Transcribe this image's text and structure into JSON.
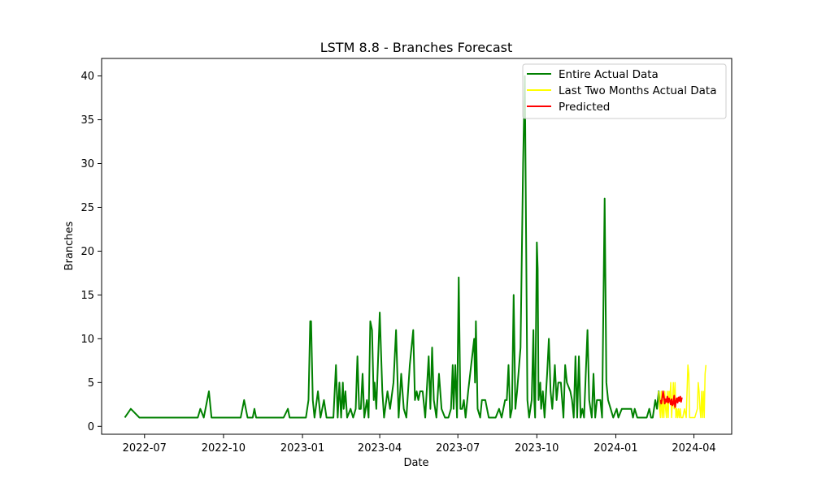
{
  "chart_data": {
    "type": "line",
    "title": "LSTM 8.8 - Branches Forecast",
    "xlabel": "Date",
    "ylabel": "Branches",
    "xlim": [
      "2022-05-12",
      "2024-05-15"
    ],
    "ylim": [
      -0.9,
      42
    ],
    "x_ticks": [
      "2022-07-01",
      "2022-10-01",
      "2023-01-01",
      "2023-04-01",
      "2023-07-01",
      "2023-10-01",
      "2024-01-01",
      "2024-04-01"
    ],
    "x_tick_labels": [
      "2022-07",
      "2022-10",
      "2023-01",
      "2023-04",
      "2023-07",
      "2023-10",
      "2024-01",
      "2024-04"
    ],
    "y_ticks": [
      0,
      5,
      10,
      15,
      20,
      25,
      30,
      35,
      40
    ],
    "grid": false,
    "legend_position": "top-right",
    "series": [
      {
        "name": "Entire Actual Data",
        "color": "#008000",
        "points": [
          [
            "2022-06-08",
            1
          ],
          [
            "2022-06-15",
            2
          ],
          [
            "2022-06-25",
            1
          ],
          [
            "2022-09-01",
            1
          ],
          [
            "2022-09-04",
            2
          ],
          [
            "2022-09-08",
            1
          ],
          [
            "2022-09-14",
            4
          ],
          [
            "2022-09-17",
            1
          ],
          [
            "2022-10-21",
            1
          ],
          [
            "2022-10-25",
            3
          ],
          [
            "2022-10-29",
            1
          ],
          [
            "2022-11-04",
            1
          ],
          [
            "2022-11-06",
            2
          ],
          [
            "2022-11-08",
            1
          ],
          [
            "2022-12-10",
            1
          ],
          [
            "2022-12-15",
            2
          ],
          [
            "2022-12-17",
            1
          ],
          [
            "2023-01-05",
            1
          ],
          [
            "2023-01-08",
            3
          ],
          [
            "2023-01-10",
            12
          ],
          [
            "2023-01-11",
            12
          ],
          [
            "2023-01-13",
            3
          ],
          [
            "2023-01-15",
            1
          ],
          [
            "2023-01-19",
            4
          ],
          [
            "2023-01-22",
            1
          ],
          [
            "2023-01-26",
            3
          ],
          [
            "2023-01-29",
            1
          ],
          [
            "2023-02-06",
            1
          ],
          [
            "2023-02-09",
            7
          ],
          [
            "2023-02-11",
            1
          ],
          [
            "2023-02-13",
            5
          ],
          [
            "2023-02-15",
            1
          ],
          [
            "2023-02-17",
            5
          ],
          [
            "2023-02-18",
            2
          ],
          [
            "2023-02-20",
            4
          ],
          [
            "2023-02-22",
            1
          ],
          [
            "2023-02-26",
            2
          ],
          [
            "2023-03-01",
            1
          ],
          [
            "2023-03-04",
            2
          ],
          [
            "2023-03-06",
            8
          ],
          [
            "2023-03-08",
            2
          ],
          [
            "2023-03-10",
            2
          ],
          [
            "2023-03-12",
            6
          ],
          [
            "2023-03-14",
            1
          ],
          [
            "2023-03-17",
            3
          ],
          [
            "2023-03-19",
            1
          ],
          [
            "2023-03-21",
            12
          ],
          [
            "2023-03-23",
            11
          ],
          [
            "2023-03-25",
            3
          ],
          [
            "2023-03-26",
            5
          ],
          [
            "2023-03-28",
            2
          ],
          [
            "2023-04-01",
            13
          ],
          [
            "2023-04-04",
            4
          ],
          [
            "2023-04-06",
            1
          ],
          [
            "2023-04-10",
            4
          ],
          [
            "2023-04-13",
            2
          ],
          [
            "2023-04-17",
            5
          ],
          [
            "2023-04-20",
            11
          ],
          [
            "2023-04-23",
            1
          ],
          [
            "2023-04-26",
            6
          ],
          [
            "2023-04-29",
            2
          ],
          [
            "2023-05-02",
            1
          ],
          [
            "2023-05-06",
            7
          ],
          [
            "2023-05-10",
            11
          ],
          [
            "2023-05-12",
            3
          ],
          [
            "2023-05-14",
            4
          ],
          [
            "2023-05-16",
            3
          ],
          [
            "2023-05-18",
            4
          ],
          [
            "2023-05-21",
            4
          ],
          [
            "2023-05-24",
            1
          ],
          [
            "2023-05-28",
            8
          ],
          [
            "2023-05-30",
            2
          ],
          [
            "2023-06-01",
            9
          ],
          [
            "2023-06-03",
            3
          ],
          [
            "2023-06-06",
            1
          ],
          [
            "2023-06-09",
            6
          ],
          [
            "2023-06-12",
            2
          ],
          [
            "2023-06-16",
            1
          ],
          [
            "2023-06-20",
            1
          ],
          [
            "2023-06-23",
            2
          ],
          [
            "2023-06-25",
            7
          ],
          [
            "2023-06-26",
            2
          ],
          [
            "2023-06-28",
            7
          ],
          [
            "2023-06-30",
            1
          ],
          [
            "2023-07-02",
            17
          ],
          [
            "2023-07-04",
            2
          ],
          [
            "2023-07-06",
            2
          ],
          [
            "2023-07-08",
            3
          ],
          [
            "2023-07-10",
            1
          ],
          [
            "2023-07-13",
            4
          ],
          [
            "2023-07-20",
            10
          ],
          [
            "2023-07-21",
            5
          ],
          [
            "2023-07-22",
            12
          ],
          [
            "2023-07-24",
            2
          ],
          [
            "2023-07-27",
            1
          ],
          [
            "2023-07-29",
            3
          ],
          [
            "2023-08-02",
            3
          ],
          [
            "2023-08-06",
            1
          ],
          [
            "2023-08-14",
            1
          ],
          [
            "2023-08-18",
            2
          ],
          [
            "2023-08-21",
            1
          ],
          [
            "2023-08-25",
            3
          ],
          [
            "2023-08-27",
            3
          ],
          [
            "2023-08-29",
            7
          ],
          [
            "2023-08-31",
            1
          ],
          [
            "2023-09-02",
            2
          ],
          [
            "2023-09-04",
            15
          ],
          [
            "2023-09-06",
            2
          ],
          [
            "2023-09-08",
            4
          ],
          [
            "2023-09-12",
            9
          ],
          [
            "2023-09-15",
            30
          ],
          [
            "2023-09-17",
            40
          ],
          [
            "2023-09-20",
            3
          ],
          [
            "2023-09-22",
            1
          ],
          [
            "2023-09-25",
            3
          ],
          [
            "2023-09-27",
            11
          ],
          [
            "2023-09-28",
            3
          ],
          [
            "2023-09-29",
            1
          ],
          [
            "2023-10-01",
            21
          ],
          [
            "2023-10-02",
            18
          ],
          [
            "2023-10-03",
            3
          ],
          [
            "2023-10-05",
            5
          ],
          [
            "2023-10-06",
            2
          ],
          [
            "2023-10-08",
            4
          ],
          [
            "2023-10-10",
            1
          ],
          [
            "2023-10-13",
            6
          ],
          [
            "2023-10-15",
            10
          ],
          [
            "2023-10-17",
            4
          ],
          [
            "2023-10-19",
            2
          ],
          [
            "2023-10-22",
            7
          ],
          [
            "2023-10-24",
            3
          ],
          [
            "2023-10-26",
            5
          ],
          [
            "2023-10-29",
            5
          ],
          [
            "2023-11-01",
            1
          ],
          [
            "2023-11-03",
            7
          ],
          [
            "2023-11-05",
            5
          ],
          [
            "2023-11-09",
            4
          ],
          [
            "2023-11-11",
            3
          ],
          [
            "2023-11-13",
            1
          ],
          [
            "2023-11-15",
            8
          ],
          [
            "2023-11-17",
            1
          ],
          [
            "2023-11-19",
            8
          ],
          [
            "2023-11-21",
            1
          ],
          [
            "2023-11-23",
            2
          ],
          [
            "2023-11-25",
            1
          ],
          [
            "2023-11-29",
            11
          ],
          [
            "2023-12-01",
            3
          ],
          [
            "2023-12-04",
            1
          ],
          [
            "2023-12-06",
            6
          ],
          [
            "2023-12-08",
            1
          ],
          [
            "2023-12-10",
            3
          ],
          [
            "2023-12-14",
            3
          ],
          [
            "2023-12-16",
            1
          ],
          [
            "2023-12-19",
            26
          ],
          [
            "2023-12-21",
            5
          ],
          [
            "2023-12-23",
            3
          ],
          [
            "2023-12-26",
            2
          ],
          [
            "2023-12-29",
            1
          ],
          [
            "2024-01-02",
            2
          ],
          [
            "2024-01-04",
            1
          ],
          [
            "2024-01-08",
            2
          ],
          [
            "2024-01-19",
            2
          ],
          [
            "2024-01-21",
            1
          ],
          [
            "2024-01-23",
            2
          ],
          [
            "2024-01-26",
            1
          ],
          [
            "2024-02-02",
            1
          ],
          [
            "2024-02-06",
            1
          ],
          [
            "2024-02-09",
            2
          ],
          [
            "2024-02-11",
            1
          ],
          [
            "2024-02-13",
            1
          ],
          [
            "2024-02-16",
            3
          ],
          [
            "2024-02-18",
            2
          ],
          [
            "2024-02-20",
            4
          ],
          [
            "2024-02-22",
            2
          ]
        ]
      },
      {
        "name": "Last Two Months Actual Data",
        "color": "#ffff00",
        "points": [
          [
            "2024-02-20",
            4
          ],
          [
            "2024-02-21",
            2
          ],
          [
            "2024-02-22",
            1
          ],
          [
            "2024-02-23",
            4
          ],
          [
            "2024-02-24",
            1
          ],
          [
            "2024-02-25",
            3
          ],
          [
            "2024-02-26",
            1
          ],
          [
            "2024-02-27",
            4
          ],
          [
            "2024-02-28",
            2
          ],
          [
            "2024-02-29",
            1
          ],
          [
            "2024-03-01",
            4
          ],
          [
            "2024-03-02",
            1
          ],
          [
            "2024-03-03",
            4
          ],
          [
            "2024-03-04",
            3
          ],
          [
            "2024-03-05",
            5
          ],
          [
            "2024-03-06",
            1
          ],
          [
            "2024-03-07",
            3
          ],
          [
            "2024-03-08",
            5
          ],
          [
            "2024-03-09",
            2
          ],
          [
            "2024-03-10",
            5
          ],
          [
            "2024-03-11",
            1
          ],
          [
            "2024-03-12",
            2
          ],
          [
            "2024-03-13",
            1
          ],
          [
            "2024-03-14",
            2
          ],
          [
            "2024-03-15",
            1
          ],
          [
            "2024-03-16",
            2
          ],
          [
            "2024-03-17",
            1
          ],
          [
            "2024-03-19",
            1
          ],
          [
            "2024-03-21",
            2
          ],
          [
            "2024-03-23",
            1
          ],
          [
            "2024-03-25",
            7
          ],
          [
            "2024-03-26",
            6
          ],
          [
            "2024-03-27",
            1
          ],
          [
            "2024-04-02",
            1
          ],
          [
            "2024-04-05",
            2
          ],
          [
            "2024-04-06",
            5
          ],
          [
            "2024-04-07",
            4
          ],
          [
            "2024-04-08",
            2
          ],
          [
            "2024-04-09",
            1
          ],
          [
            "2024-04-10",
            4
          ],
          [
            "2024-04-11",
            1
          ],
          [
            "2024-04-12",
            4
          ],
          [
            "2024-04-13",
            1
          ],
          [
            "2024-04-14",
            6
          ],
          [
            "2024-04-15",
            7
          ]
        ]
      },
      {
        "name": "Predicted",
        "color": "#ff0000",
        "points": [
          [
            "2024-02-22",
            3
          ],
          [
            "2024-02-23",
            2.6
          ],
          [
            "2024-02-24",
            3.2
          ],
          [
            "2024-02-25",
            4
          ],
          [
            "2024-02-26",
            3.4
          ],
          [
            "2024-02-27",
            2.6
          ],
          [
            "2024-02-28",
            3.1
          ],
          [
            "2024-02-29",
            2.8
          ],
          [
            "2024-03-01",
            3.4
          ],
          [
            "2024-03-02",
            2.7
          ],
          [
            "2024-03-03",
            3.2
          ],
          [
            "2024-03-04",
            2.9
          ],
          [
            "2024-03-05",
            2.5
          ],
          [
            "2024-03-06",
            3.1
          ],
          [
            "2024-03-07",
            2.4
          ],
          [
            "2024-03-08",
            2.6
          ],
          [
            "2024-03-09",
            3.5
          ],
          [
            "2024-03-10",
            2.2
          ],
          [
            "2024-03-11",
            2.8
          ],
          [
            "2024-03-12",
            3.2
          ],
          [
            "2024-03-13",
            2.7
          ],
          [
            "2024-03-14",
            3.3
          ],
          [
            "2024-03-15",
            2.9
          ],
          [
            "2024-03-16",
            3.4
          ],
          [
            "2024-03-17",
            2.8
          ],
          [
            "2024-03-18",
            3.3
          ]
        ]
      }
    ]
  }
}
